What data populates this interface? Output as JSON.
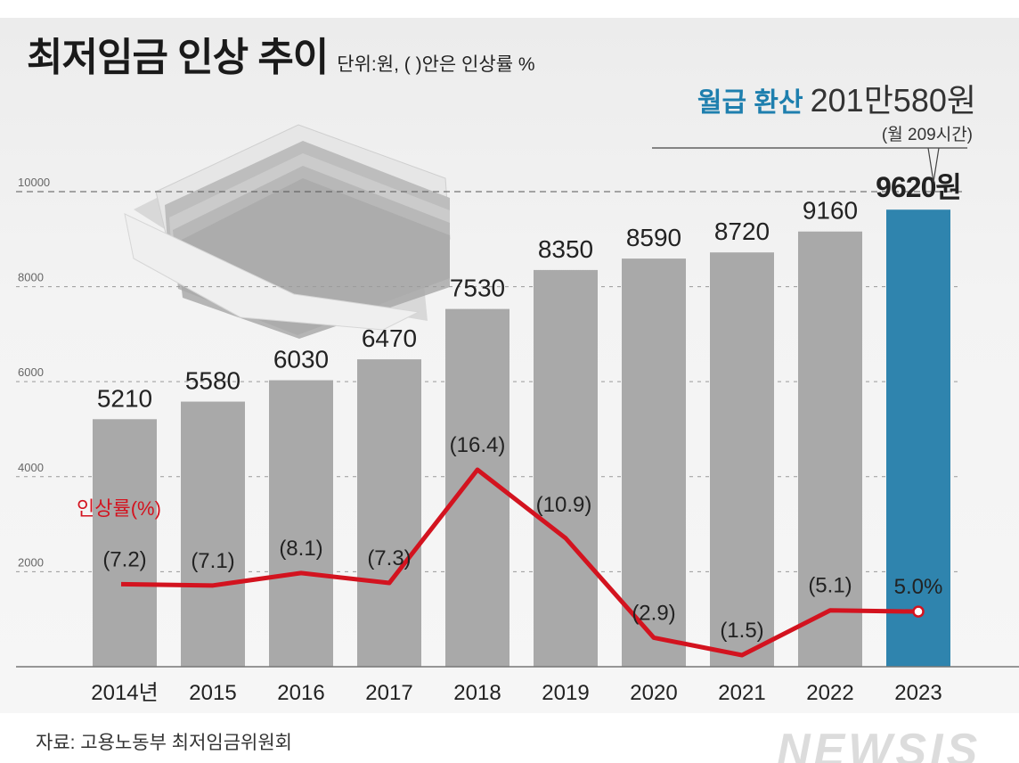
{
  "header": {
    "title": "최저임금 인상 추이",
    "unit_note": "단위:원, ( )안은 인상률 %",
    "monthly_label": "월급 환산",
    "monthly_value": "201만580원",
    "monthly_hours": "(월 209시간)"
  },
  "source": "자료: 고용노동부 최저임금위원회",
  "logo_text": "NEWSIS",
  "colors": {
    "bar": "#a9a9a9",
    "highlight_bar": "#2f84ae",
    "line": "#d3131f",
    "axis": "#888888",
    "grid": "#999999"
  },
  "chart_data": {
    "type": "bar",
    "title": "최저임금 인상 추이",
    "categories": [
      "2014년",
      "2015",
      "2016",
      "2017",
      "2018",
      "2019",
      "2020",
      "2021",
      "2022",
      "2023"
    ],
    "values": [
      5210,
      5580,
      6030,
      6470,
      7530,
      8350,
      8590,
      8720,
      9160,
      9620
    ],
    "value_labels": [
      "5210",
      "5580",
      "6030",
      "6470",
      "7530",
      "8350",
      "8590",
      "8720",
      "9160",
      "9620원"
    ],
    "highlight_index": 9,
    "y_ticks": [
      2000,
      4000,
      6000,
      8000,
      10000
    ],
    "y_tick_labels": [
      "2000",
      "4000",
      "6000",
      "8000",
      "10000"
    ],
    "ylim": [
      0,
      11500
    ],
    "grid": true,
    "series": [
      {
        "name": "인상률(%)",
        "type": "line",
        "values": [
          7.2,
          7.1,
          8.1,
          7.3,
          16.4,
          10.9,
          2.9,
          1.5,
          5.1,
          5.0
        ],
        "labels": [
          "(7.2)",
          "(7.1)",
          "(8.1)",
          "(7.3)",
          "(16.4)",
          "(10.9)",
          "(2.9)",
          "(1.5)",
          "(5.1)",
          "5.0%"
        ]
      }
    ]
  }
}
